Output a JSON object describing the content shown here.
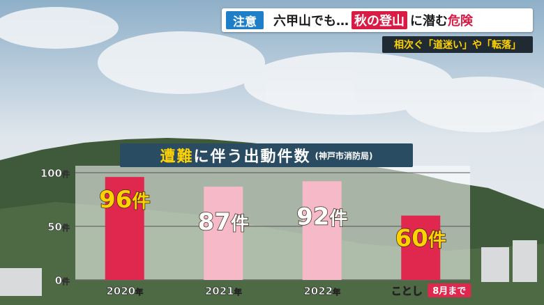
{
  "header": {
    "tag": "注意",
    "headline_pre": "六甲山でも…",
    "headline_box": "秋の登山",
    "headline_mid": "に潜む",
    "headline_red": "危険",
    "subhead": "相次ぐ「道迷い」や「転落」"
  },
  "chart_data": {
    "type": "bar",
    "title": "遭難に伴う出動件数",
    "title_highlight": "遭難",
    "title_rest": "に伴う出動件数",
    "source": "(神戸市消防局)",
    "categories": [
      "2020年",
      "2021年",
      "2022年",
      "ことし 8月まで"
    ],
    "category_labels": [
      {
        "main": "2020",
        "unit": "年",
        "tag": ""
      },
      {
        "main": "2021",
        "unit": "年",
        "tag": ""
      },
      {
        "main": "2022",
        "unit": "年",
        "tag": ""
      },
      {
        "main": "ことし",
        "unit": "",
        "tag": "8月まで"
      }
    ],
    "values": [
      96,
      87,
      92,
      60
    ],
    "value_unit": "件",
    "ylim": [
      0,
      100
    ],
    "yticks": [
      0,
      50,
      100
    ],
    "ytick_unit": "件",
    "grid": true,
    "colors": {
      "highlight": "#e0284f",
      "normal": "#f6b9c7",
      "label_highlight": "#ffd200",
      "label_normal": "#ffffff"
    },
    "highlighted": [
      true,
      false,
      false,
      true
    ]
  }
}
